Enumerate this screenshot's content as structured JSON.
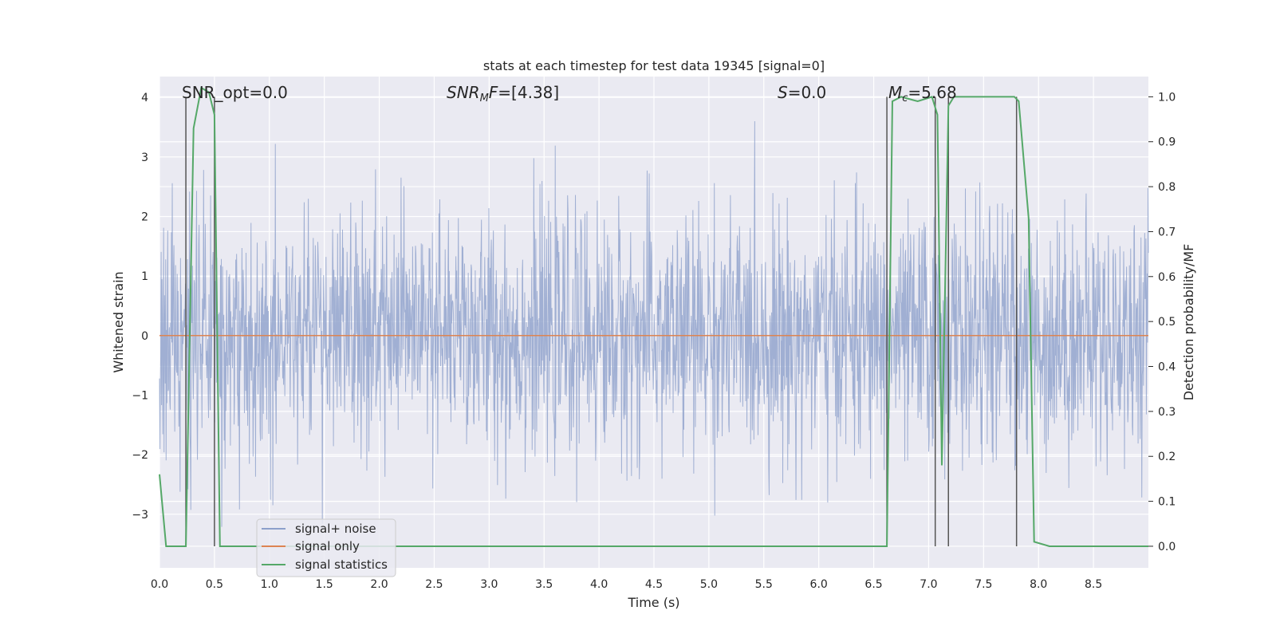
{
  "chart_data": {
    "type": "line",
    "title": "stats at each timestep for test data 19345 [signal=0]",
    "xlabel": "Time (s)",
    "ylabel": "Whitened strain",
    "ylabel_right": "Detection probability/MF",
    "xlim": [
      0.0,
      9.0
    ],
    "ylim": [
      -3.9,
      4.35
    ],
    "ylim_right": [
      -0.048,
      1.045
    ],
    "x_ticks": [
      "0.0",
      "0.5",
      "1.0",
      "1.5",
      "2.0",
      "2.5",
      "3.0",
      "3.5",
      "4.0",
      "4.5",
      "5.0",
      "5.5",
      "6.0",
      "6.5",
      "7.0",
      "7.5",
      "8.0",
      "8.5"
    ],
    "y_ticks": [
      "4",
      "3",
      "2",
      "1",
      "0",
      "−1",
      "−2",
      "−3"
    ],
    "y_ticks_right": [
      "1.0",
      "0.9",
      "0.8",
      "0.7",
      "0.6",
      "0.5",
      "0.4",
      "0.3",
      "0.2",
      "0.1",
      "0.0"
    ],
    "grid": true,
    "legend_position": "lower-left",
    "annotations": {
      "snr_opt": "SNR_opt=0.0",
      "snr_mf_main": "SNR",
      "snr_mf_sub": "M",
      "snr_mf_mid": "F",
      "snr_mf_val": "=[4.38]",
      "s_main": "S",
      "s_val": "=0.0",
      "mc_main": "M",
      "mc_sub": "c",
      "mc_val": "=5.68"
    },
    "vertical_markers_s": [
      0.24,
      0.5,
      6.62,
      7.06,
      7.18,
      7.8
    ],
    "series": [
      {
        "name": "signal+ noise",
        "color": "#8da0cb",
        "description_values": "whitened noise, approx. range -3.6 to 3.6",
        "envelope": {
          "typical_min": -1.4,
          "typical_max": 1.7,
          "peak_max": 3.6,
          "peak_min": -3.6
        }
      },
      {
        "name": "signal only",
        "color": "#dd8452",
        "x": [
          0.0,
          9.0
        ],
        "y": [
          0.0,
          0.0
        ]
      },
      {
        "name": "signal statistics",
        "color": "#55a868",
        "axis": "right",
        "x": [
          0.0,
          0.06,
          0.24,
          0.31,
          0.38,
          0.45,
          0.5,
          0.55,
          0.6,
          1.0,
          2.0,
          3.0,
          4.0,
          5.0,
          6.0,
          6.5,
          6.62,
          6.67,
          6.75,
          6.9,
          7.03,
          7.08,
          7.12,
          7.18,
          7.23,
          7.4,
          7.6,
          7.78,
          7.82,
          7.91,
          7.96,
          8.1,
          9.0
        ],
        "y": [
          0.16,
          0.0,
          0.0,
          0.93,
          1.02,
          1.01,
          0.96,
          0.0,
          0.0,
          0.0,
          0.0,
          0.0,
          0.0,
          0.0,
          0.0,
          0.0,
          0.0,
          0.99,
          1.0,
          0.99,
          1.0,
          0.96,
          0.18,
          0.98,
          1.0,
          1.0,
          1.0,
          1.0,
          0.99,
          0.73,
          0.01,
          0.0,
          0.0
        ]
      }
    ]
  }
}
